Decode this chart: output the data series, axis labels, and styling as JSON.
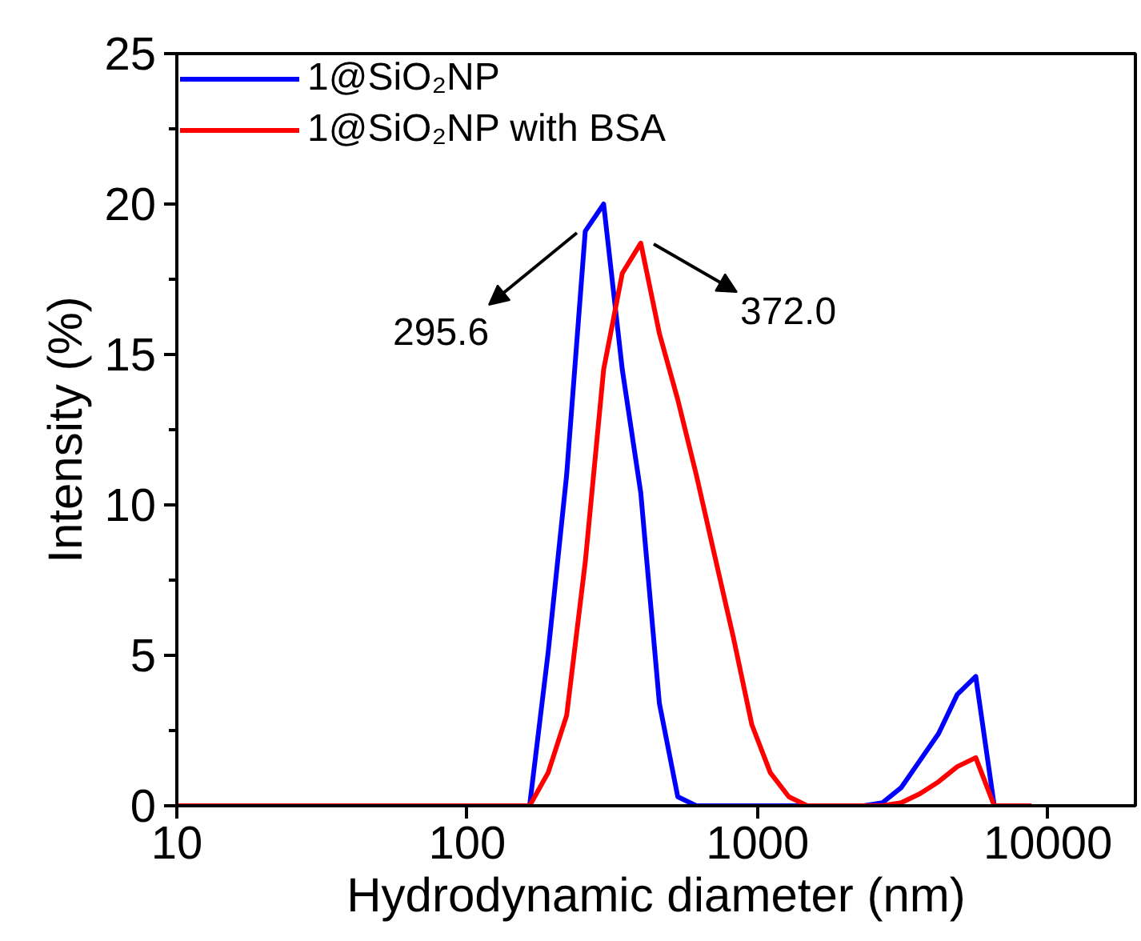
{
  "chart_data": {
    "type": "line",
    "xlabel": "Hydrodynamic diameter (nm)",
    "ylabel": "Intensity (%)",
    "log": "x",
    "xlim": [
      10,
      20000
    ],
    "xticks": [
      10,
      100,
      1000,
      10000
    ],
    "ylim": [
      0,
      25
    ],
    "yticks": [
      0,
      5,
      10,
      15,
      20,
      25
    ],
    "legend": "top left",
    "grid": false,
    "marker": "none",
    "line_style": "solid",
    "series": [
      {
        "name": "1@SiO₂NP",
        "color": "#0000ff",
        "x": [
          10,
          164,
          190,
          220,
          255,
          295,
          342,
          396,
          459,
          531,
          615,
          712,
          825,
          955,
          1106,
          1281,
          1484,
          2320,
          2690,
          3120,
          3620,
          4200,
          4870,
          5640,
          6530
        ],
        "values": [
          0,
          0,
          5.1,
          11.0,
          19.1,
          20.0,
          14.5,
          10.4,
          3.4,
          0.3,
          0,
          0,
          0,
          0,
          0,
          0,
          0,
          0,
          0.1,
          0.6,
          1.5,
          2.4,
          3.7,
          4.3,
          0
        ]
      },
      {
        "name": "1@SiO₂NP with BSA",
        "color": "#ff0000",
        "x": [
          10,
          164,
          190,
          220,
          255,
          295,
          342,
          396,
          459,
          531,
          615,
          712,
          825,
          955,
          1106,
          1281,
          1484,
          2320,
          2690,
          3120,
          3620,
          4200,
          4870,
          5640,
          6530,
          8770
        ],
        "values": [
          0,
          0,
          1.1,
          3.0,
          8.1,
          14.5,
          17.7,
          18.7,
          15.7,
          13.5,
          11.0,
          8.3,
          5.6,
          2.7,
          1.1,
          0.3,
          0,
          0,
          0,
          0.1,
          0.4,
          0.8,
          1.3,
          1.6,
          0,
          0
        ]
      }
    ],
    "annotations": [
      "295.6",
      "372.0"
    ]
  }
}
